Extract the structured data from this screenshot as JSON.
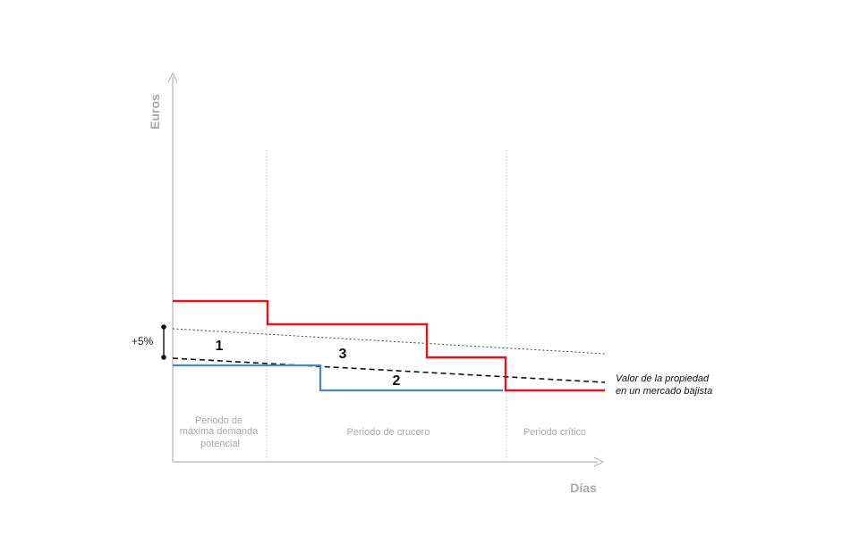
{
  "axes": {
    "y_label": "Euros",
    "x_label": "Días"
  },
  "periods": {
    "p1_lines": [
      "Periodo de",
      "máxima demanda",
      "potencial"
    ],
    "p2": "Periodo de crucero",
    "p3": "Periodo crítico"
  },
  "annotations": {
    "pct": "+5%",
    "zone1": "1",
    "zone2": "2",
    "zone3": "3"
  },
  "legend": {
    "line1": "Valor de la propiedad",
    "line2": "en un mercado bajista"
  },
  "colors": {
    "red_price": "#e3141c",
    "blue_price": "#4a86c8",
    "axis": "#b5b5b5",
    "divider": "#b5b5b5",
    "dashed_value": "#111111",
    "dotted_upper": "#444444"
  }
}
